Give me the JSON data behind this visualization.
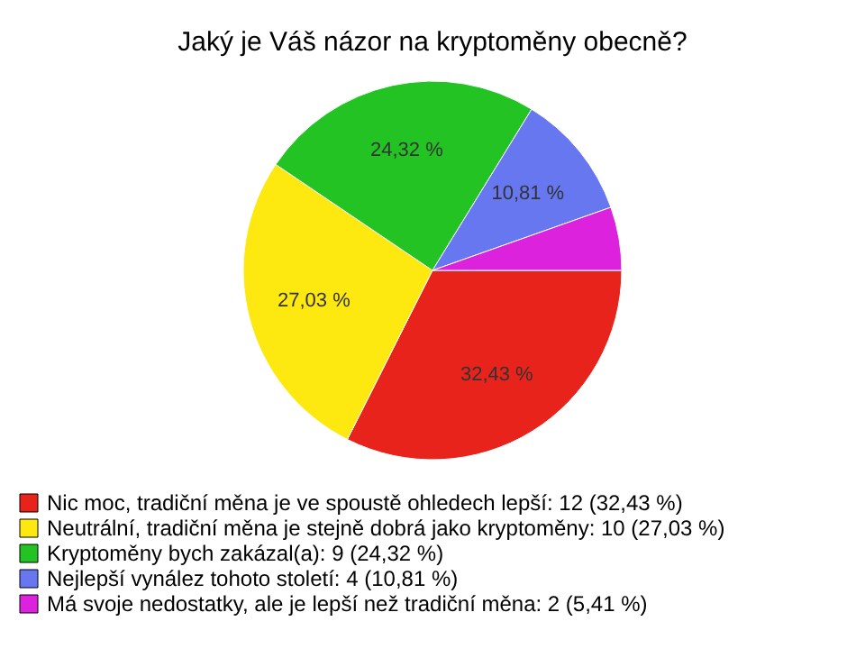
{
  "chart_data": {
    "type": "pie",
    "title": "Jaký je Váš názor na kryptoměny obecně?",
    "categories": [
      "Nic moc, tradiční měna je ve spoustě ohledech lepší: 12 (32,43 %)",
      "Neutrální, tradiční měna je stejně dobrá jako kryptoměny: 10 (27,03 %)",
      "Kryptoměny bych zakázal(a): 9 (24,32 %)",
      "Nejlepší vynález tohoto století: 4 (10,81 %)",
      "Má svoje nedostatky, ale je lepší než tradiční měna: 2 (5,41 %)"
    ],
    "values": [
      32.43,
      27.03,
      24.32,
      10.81,
      5.41
    ],
    "value_labels": [
      "32,43 %",
      "27,03 %",
      "24,32 %",
      "10,81 %",
      null
    ],
    "colors": [
      "#e8231b",
      "#fde910",
      "#22c322",
      "#6677f0",
      "#dd22dd"
    ],
    "legend": "bottom"
  }
}
